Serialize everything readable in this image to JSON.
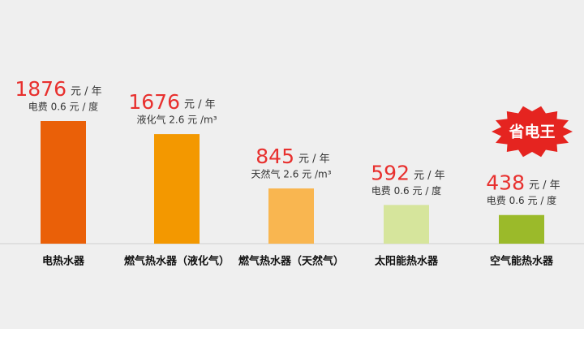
{
  "chart_data": {
    "type": "bar",
    "categories": [
      "电热水器",
      "燃气热水器（液化气）",
      "燃气热水器（天然气）",
      "太阳能热水器",
      "空气能热水器"
    ],
    "values": [
      1876,
      1676,
      845,
      592,
      438
    ],
    "unit": "元 / 年",
    "notes": [
      "电费 0.6 元 / 度",
      "液化气 2.6 元 /m³",
      "天然气 2.6 元 /m³",
      "电费 0.6 元 / 度",
      "电费 0.6 元 / 度"
    ],
    "colors": [
      "#ea6008",
      "#f39800",
      "#f9b650",
      "#d6e59c",
      "#9bba2a"
    ],
    "badge": "省电王"
  }
}
